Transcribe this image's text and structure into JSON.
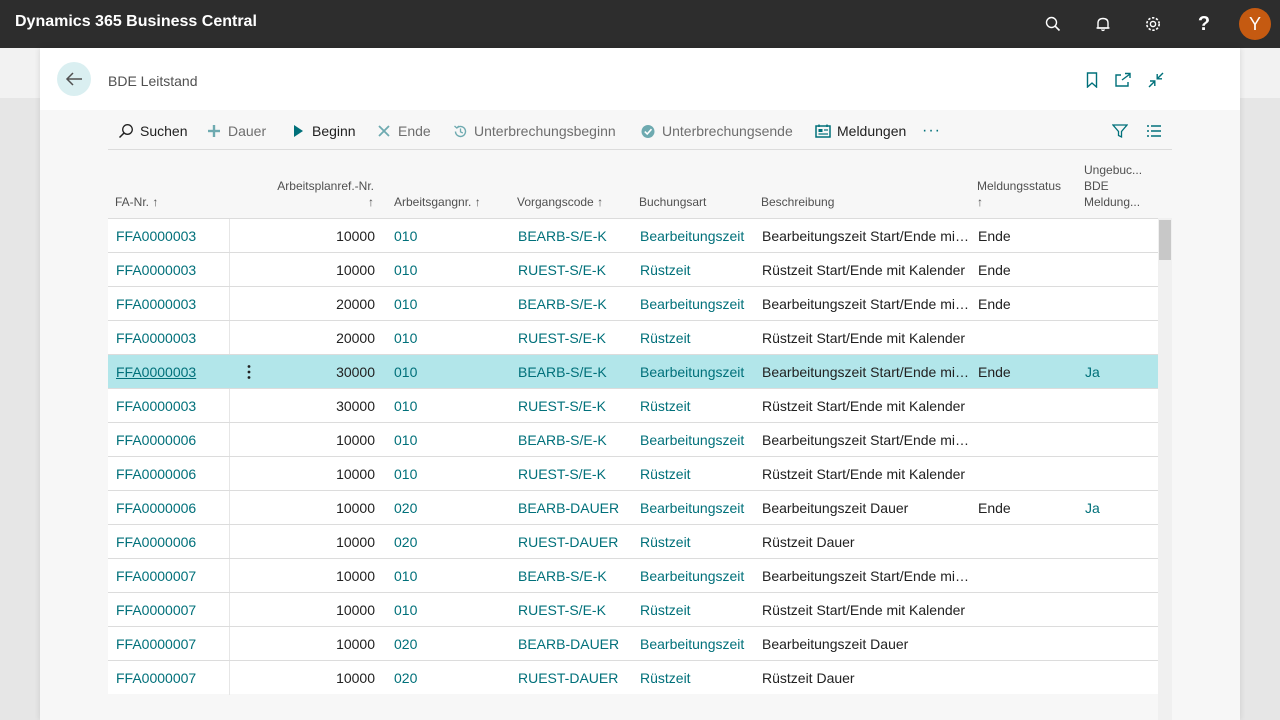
{
  "app": {
    "title": "Dynamics 365 Business Central",
    "avatar_initial": "Y"
  },
  "topbar_icons": [
    "search-icon",
    "bell-icon",
    "gear-icon",
    "help-icon"
  ],
  "page": {
    "title": "BDE Leitstand"
  },
  "actions": {
    "search": "Suchen",
    "duration": "Dauer",
    "start": "Beginn",
    "end": "Ende",
    "interrupt_start": "Unterbrechungsbeginn",
    "interrupt_end": "Unterbrechungsende",
    "messages": "Meldungen",
    "more": "···"
  },
  "columns": {
    "fa_nr": "FA-Nr.",
    "arbeitsplanref_nr": "Arbeitsplanref.-Nr.",
    "arbeitsgangnr": "Arbeitsgangnr.",
    "vorgangscode": "Vorgangscode",
    "buchungsart": "Buchungsart",
    "beschreibung": "Beschreibung",
    "meldungsstatus": "Meldungsstatus",
    "ungebucht_line1": "Ungebuc...",
    "ungebucht_line2": "BDE",
    "ungebucht_line3": "Meldung...",
    "sort_arrow": "↑"
  },
  "rows": [
    {
      "fa": "FFA0000003",
      "ref": "10000",
      "ag": "010",
      "vc": "BEARB-S/E-K",
      "ba": "Bearbeitungszeit",
      "be": "Bearbeitungszeit Start/Ende mit...",
      "ms": "Ende",
      "un": ""
    },
    {
      "fa": "FFA0000003",
      "ref": "10000",
      "ag": "010",
      "vc": "RUEST-S/E-K",
      "ba": "Rüstzeit",
      "be": "Rüstzeit Start/Ende mit Kalender",
      "ms": "Ende",
      "un": ""
    },
    {
      "fa": "FFA0000003",
      "ref": "20000",
      "ag": "010",
      "vc": "BEARB-S/E-K",
      "ba": "Bearbeitungszeit",
      "be": "Bearbeitungszeit Start/Ende mit...",
      "ms": "Ende",
      "un": ""
    },
    {
      "fa": "FFA0000003",
      "ref": "20000",
      "ag": "010",
      "vc": "RUEST-S/E-K",
      "ba": "Rüstzeit",
      "be": "Rüstzeit Start/Ende mit Kalender",
      "ms": "",
      "un": ""
    },
    {
      "fa": "FFA0000003",
      "ref": "30000",
      "ag": "010",
      "vc": "BEARB-S/E-K",
      "ba": "Bearbeitungszeit",
      "be": "Bearbeitungszeit Start/Ende mit...",
      "ms": "Ende",
      "un": "Ja"
    },
    {
      "fa": "FFA0000003",
      "ref": "30000",
      "ag": "010",
      "vc": "RUEST-S/E-K",
      "ba": "Rüstzeit",
      "be": "Rüstzeit Start/Ende mit Kalender",
      "ms": "",
      "un": ""
    },
    {
      "fa": "FFA0000006",
      "ref": "10000",
      "ag": "010",
      "vc": "BEARB-S/E-K",
      "ba": "Bearbeitungszeit",
      "be": "Bearbeitungszeit Start/Ende mit...",
      "ms": "",
      "un": ""
    },
    {
      "fa": "FFA0000006",
      "ref": "10000",
      "ag": "010",
      "vc": "RUEST-S/E-K",
      "ba": "Rüstzeit",
      "be": "Rüstzeit Start/Ende mit Kalender",
      "ms": "",
      "un": ""
    },
    {
      "fa": "FFA0000006",
      "ref": "10000",
      "ag": "020",
      "vc": "BEARB-DAUER",
      "ba": "Bearbeitungszeit",
      "be": "Bearbeitungszeit Dauer",
      "ms": "Ende",
      "un": "Ja"
    },
    {
      "fa": "FFA0000006",
      "ref": "10000",
      "ag": "020",
      "vc": "RUEST-DAUER",
      "ba": "Rüstzeit",
      "be": "Rüstzeit Dauer",
      "ms": "",
      "un": ""
    },
    {
      "fa": "FFA0000007",
      "ref": "10000",
      "ag": "010",
      "vc": "BEARB-S/E-K",
      "ba": "Bearbeitungszeit",
      "be": "Bearbeitungszeit Start/Ende mit...",
      "ms": "",
      "un": ""
    },
    {
      "fa": "FFA0000007",
      "ref": "10000",
      "ag": "010",
      "vc": "RUEST-S/E-K",
      "ba": "Rüstzeit",
      "be": "Rüstzeit Start/Ende mit Kalender",
      "ms": "",
      "un": ""
    },
    {
      "fa": "FFA0000007",
      "ref": "10000",
      "ag": "020",
      "vc": "BEARB-DAUER",
      "ba": "Bearbeitungszeit",
      "be": "Bearbeitungszeit Dauer",
      "ms": "",
      "un": ""
    },
    {
      "fa": "FFA0000007",
      "ref": "10000",
      "ag": "020",
      "vc": "RUEST-DAUER",
      "ba": "Rüstzeit",
      "be": "Rüstzeit Dauer",
      "ms": "",
      "un": ""
    }
  ],
  "selected_row_index": 4,
  "colors": {
    "accent": "#00707a",
    "selected_row": "#b2e6ea",
    "topbar": "#2d2d2d",
    "avatar": "#c55a11"
  }
}
